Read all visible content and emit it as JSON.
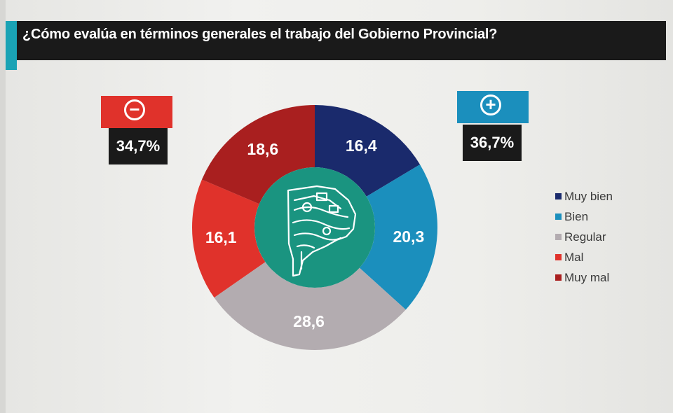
{
  "header": {
    "title": "¿Cómo evalúa en términos generales el trabajo del Gobierno Provincial?"
  },
  "summary": {
    "negative": {
      "symbol": "−",
      "percent": "34,7%",
      "color": "#e0322b"
    },
    "positive": {
      "symbol": "+",
      "percent": "36,7%",
      "color": "#1b8fbd"
    }
  },
  "center_logo": {
    "icon": "buenos-aires-province-map-logo",
    "color": "#1a9480"
  },
  "chart_data": {
    "type": "pie",
    "variant": "donut",
    "title": "¿Cómo evalúa en términos generales el trabajo del Gobierno Provincial?",
    "legend_position": "right",
    "slices": [
      {
        "name": "Muy bien",
        "value": 16.4,
        "label": "16,4",
        "color": "#1a2a6c"
      },
      {
        "name": "Bien",
        "value": 20.3,
        "label": "20,3",
        "color": "#1b8fbd"
      },
      {
        "name": "Regular",
        "value": 28.6,
        "label": "28,6",
        "color": "#b3acb0"
      },
      {
        "name": "Mal",
        "value": 16.1,
        "label": "16,1",
        "color": "#e0322b"
      },
      {
        "name": "Muy mal",
        "value": 18.6,
        "label": "18,6",
        "color": "#a91f1f"
      }
    ]
  }
}
